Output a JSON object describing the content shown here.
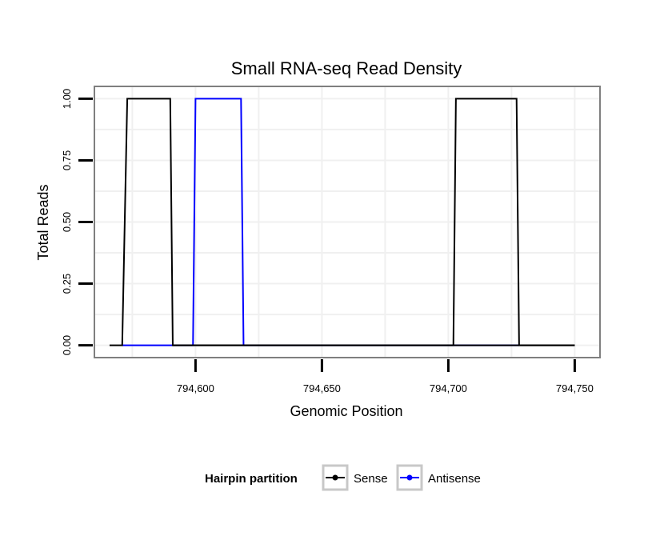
{
  "chart_data": {
    "type": "line",
    "title": "Small RNA-seq Read Density",
    "xlabel": "Genomic Position",
    "ylabel": "Total Reads",
    "xlim": [
      794560,
      794760
    ],
    "ylim": [
      -0.05,
      1.05
    ],
    "x_ticks": [
      794600,
      794650,
      794700,
      794750
    ],
    "x_tick_labels": [
      "794,600",
      "794,650",
      "794,700",
      "794,750"
    ],
    "y_ticks": [
      0,
      0.25,
      0.5,
      0.75,
      1.0
    ],
    "y_tick_labels": [
      "0.00",
      "0.25",
      "0.50",
      "0.75",
      "1.00"
    ],
    "grid": true,
    "legend": {
      "title": "Hairpin partition",
      "position": "bottom"
    },
    "series": [
      {
        "name": "Sense",
        "color": "#000000",
        "x": [
          794566,
          794571,
          794573,
          794590,
          794591,
          794750
        ],
        "y": [
          0,
          0,
          1,
          1,
          0,
          0
        ],
        "x2": [
          794591,
          794702,
          794703,
          794727,
          794728,
          794750
        ],
        "y2": [
          0,
          0,
          1,
          1,
          0,
          0
        ]
      },
      {
        "name": "Antisense",
        "color": "#0000ff",
        "x": [
          794571,
          794599,
          794600,
          794618,
          794619,
          794728
        ],
        "y": [
          0,
          0,
          1,
          1,
          0,
          0
        ]
      }
    ]
  }
}
